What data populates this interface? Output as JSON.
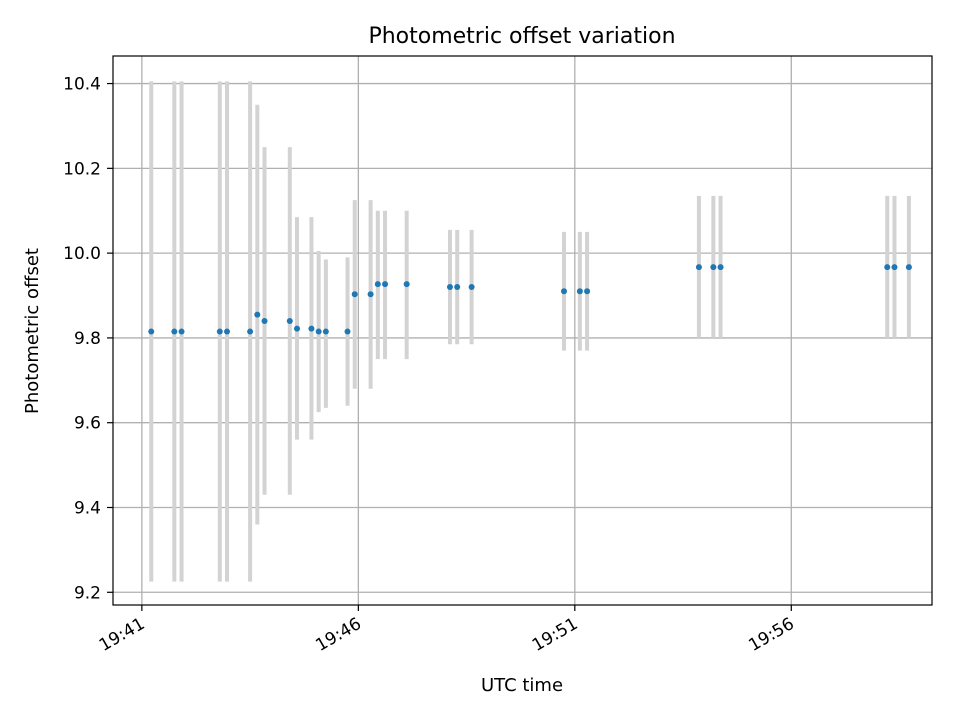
{
  "chart_data": {
    "type": "scatter",
    "title": "Photometric offset variation",
    "xlabel": "UTC time",
    "ylabel": "Photometric offset",
    "xlim": [
      "19:40:20",
      "19:59:15"
    ],
    "ylim": [
      9.17,
      10.465
    ],
    "x_ticks": [
      "19:41",
      "19:46",
      "19:51",
      "19:56"
    ],
    "y_ticks": [
      9.2,
      9.4,
      9.6,
      9.8,
      10.0,
      10.2,
      10.4
    ],
    "grid": true,
    "colors": {
      "point": "#1f77b4",
      "errorbar": "#d3d3d3",
      "grid": "#b0b0b0"
    },
    "points": [
      {
        "x": "19:41:13",
        "y": 9.815,
        "ylo": 9.225,
        "yhi": 10.405
      },
      {
        "x": "19:41:45",
        "y": 9.815,
        "ylo": 9.225,
        "yhi": 10.405
      },
      {
        "x": "19:41:55",
        "y": 9.815,
        "ylo": 9.225,
        "yhi": 10.405
      },
      {
        "x": "19:42:48",
        "y": 9.815,
        "ylo": 9.225,
        "yhi": 10.405
      },
      {
        "x": "19:42:58",
        "y": 9.815,
        "ylo": 9.225,
        "yhi": 10.405
      },
      {
        "x": "19:43:30",
        "y": 9.815,
        "ylo": 9.225,
        "yhi": 10.405
      },
      {
        "x": "19:43:40",
        "y": 9.855,
        "ylo": 9.36,
        "yhi": 10.35
      },
      {
        "x": "19:43:50",
        "y": 9.84,
        "ylo": 9.43,
        "yhi": 10.25
      },
      {
        "x": "19:44:25",
        "y": 9.84,
        "ylo": 9.43,
        "yhi": 10.25
      },
      {
        "x": "19:44:35",
        "y": 9.822,
        "ylo": 9.56,
        "yhi": 10.085
      },
      {
        "x": "19:44:55",
        "y": 9.822,
        "ylo": 9.56,
        "yhi": 10.085
      },
      {
        "x": "19:45:05",
        "y": 9.815,
        "ylo": 9.625,
        "yhi": 10.005
      },
      {
        "x": "19:45:15",
        "y": 9.815,
        "ylo": 9.635,
        "yhi": 9.985
      },
      {
        "x": "19:45:45",
        "y": 9.815,
        "ylo": 9.64,
        "yhi": 9.99
      },
      {
        "x": "19:45:55",
        "y": 9.903,
        "ylo": 9.68,
        "yhi": 10.125
      },
      {
        "x": "19:46:17",
        "y": 9.903,
        "ylo": 9.68,
        "yhi": 10.125
      },
      {
        "x": "19:46:27",
        "y": 9.927,
        "ylo": 9.75,
        "yhi": 10.1
      },
      {
        "x": "19:46:37",
        "y": 9.927,
        "ylo": 9.75,
        "yhi": 10.1
      },
      {
        "x": "19:47:07",
        "y": 9.927,
        "ylo": 9.75,
        "yhi": 10.1
      },
      {
        "x": "19:48:07",
        "y": 9.92,
        "ylo": 9.785,
        "yhi": 10.055
      },
      {
        "x": "19:48:17",
        "y": 9.92,
        "ylo": 9.785,
        "yhi": 10.055
      },
      {
        "x": "19:48:37",
        "y": 9.92,
        "ylo": 9.785,
        "yhi": 10.055
      },
      {
        "x": "19:50:45",
        "y": 9.91,
        "ylo": 9.77,
        "yhi": 10.05
      },
      {
        "x": "19:51:07",
        "y": 9.91,
        "ylo": 9.77,
        "yhi": 10.05
      },
      {
        "x": "19:51:17",
        "y": 9.91,
        "ylo": 9.77,
        "yhi": 10.05
      },
      {
        "x": "19:53:52",
        "y": 9.967,
        "ylo": 9.8,
        "yhi": 10.135
      },
      {
        "x": "19:54:12",
        "y": 9.967,
        "ylo": 9.8,
        "yhi": 10.135
      },
      {
        "x": "19:54:22",
        "y": 9.967,
        "ylo": 9.8,
        "yhi": 10.135
      },
      {
        "x": "19:58:13",
        "y": 9.967,
        "ylo": 9.8,
        "yhi": 10.135
      },
      {
        "x": "19:58:23",
        "y": 9.967,
        "ylo": 9.8,
        "yhi": 10.135
      },
      {
        "x": "19:58:43",
        "y": 9.967,
        "ylo": 9.8,
        "yhi": 10.135
      }
    ]
  }
}
